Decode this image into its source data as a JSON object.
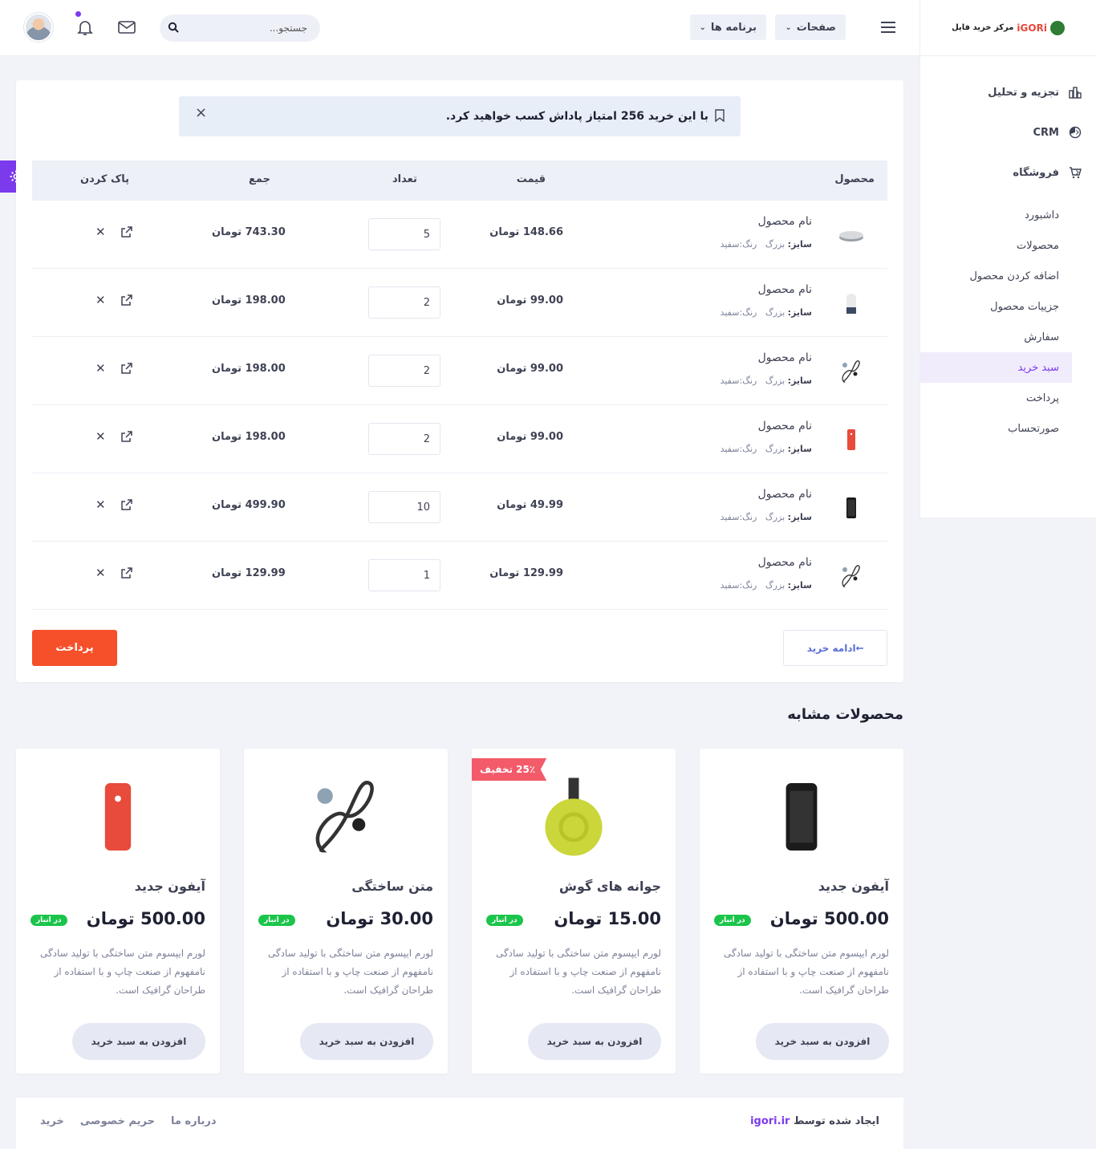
{
  "brand": {
    "text": "مرکز خرید فایل",
    "logo": "iGORi"
  },
  "sidebar": {
    "groups": [
      {
        "label": "تجزیه و تحلیل",
        "icon": "bar-chart-icon"
      },
      {
        "label": "CRM",
        "icon": "pie-chart-icon"
      },
      {
        "label": "فروشگاه",
        "icon": "cart-icon"
      }
    ],
    "items": [
      {
        "label": "داشبورد"
      },
      {
        "label": "محصولات"
      },
      {
        "label": "اضافه کردن محصول"
      },
      {
        "label": "جزییات محصول"
      },
      {
        "label": "سفارش"
      },
      {
        "label": "سبد خرید",
        "active": true
      },
      {
        "label": "پرداخت"
      },
      {
        "label": "صورتحساب"
      }
    ]
  },
  "header": {
    "pages_label": "صفحات",
    "apps_label": "برنامه ها",
    "search_placeholder": "جستجو..."
  },
  "alert": {
    "text": "با این خرید 256 امتیاز پاداش کسب خواهید کرد."
  },
  "cart": {
    "columns": {
      "product": "محصول",
      "price": "قیمت",
      "qty": "تعداد",
      "total": "جمع",
      "remove": "پاک کردن"
    },
    "meta": {
      "size_label": "سایز:",
      "size_value": "بزرگ",
      "color_label": "رنگ:",
      "color_value": "سفید"
    },
    "rows": [
      {
        "name": "نام محصول",
        "price": "148.66 تومان",
        "qty": "5",
        "total": "743.30 تومان",
        "image": "speaker-icon"
      },
      {
        "name": "نام محصول",
        "price": "99.00 تومان",
        "qty": "2",
        "total": "198.00 تومان",
        "image": "smart-speaker-icon"
      },
      {
        "name": "نام محصول",
        "price": "99.00 تومان",
        "qty": "2",
        "total": "198.00 تومان",
        "image": "earbuds-icon"
      },
      {
        "name": "نام محصول",
        "price": "99.00 تومان",
        "qty": "2",
        "total": "198.00 تومان",
        "image": "red-phone-icon"
      },
      {
        "name": "نام محصول",
        "price": "49.99 تومان",
        "qty": "10",
        "total": "499.90 تومان",
        "image": "black-phone-icon"
      },
      {
        "name": "نام محصول",
        "price": "129.99 تومان",
        "qty": "1",
        "total": "129.99 تومان",
        "image": "earbuds-icon"
      }
    ],
    "continue_label": "ادامه خرید",
    "pay_label": "پرداخت"
  },
  "similar": {
    "title": "محصولات مشابه",
    "stock_label": "در انبار",
    "add_label": "افزودن به سبد خرید",
    "desc": "لورم ایپسوم متن ساختگی با تولید سادگی نامفهوم از صنعت چاپ و با استفاده از طراحان گرافیک است.",
    "products": [
      {
        "title": "آیفون جدید",
        "price": "500.00 تومان",
        "image": "black-phone-icon"
      },
      {
        "title": "جوانه های گوش",
        "price": "15.00 تومان",
        "image": "chromecast-icon",
        "badge": "25٪ تخفیف"
      },
      {
        "title": "متن ساختگی",
        "price": "30.00 تومان",
        "image": "earbuds-icon"
      },
      {
        "title": "آیفون جدید",
        "price": "500.00 تومان",
        "image": "red-phone-icon"
      }
    ]
  },
  "footer": {
    "credit_prefix": "ایجاد شده توسط",
    "credit_link": "igori.ir",
    "links": [
      "درباره ما",
      "حریم خصوصی",
      "خرید"
    ]
  }
}
